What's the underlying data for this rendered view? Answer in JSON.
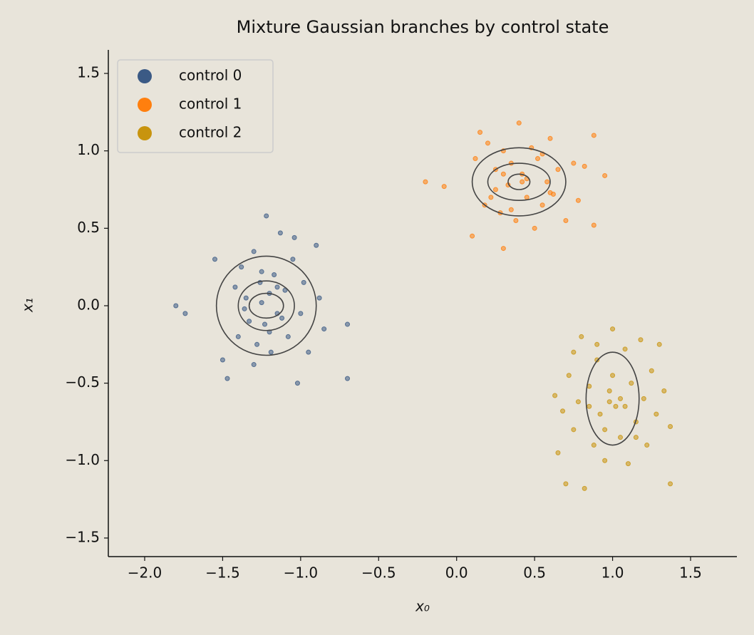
{
  "chart_data": {
    "type": "scatter",
    "title": "Mixture Gaussian branches by control state",
    "x_label": "x₀",
    "y_label": "x₁",
    "xlim": [
      -2.233,
      1.797
    ],
    "ylim": [
      -1.62,
      1.652
    ],
    "xticks": [
      {
        "value": -2.0,
        "label": "−2.0"
      },
      {
        "value": -1.5,
        "label": "−1.5"
      },
      {
        "value": -1.0,
        "label": "−1.0"
      },
      {
        "value": -0.5,
        "label": "−0.5"
      },
      {
        "value": 0,
        "label": "0.0"
      },
      0.5,
      {
        "value": 1.0,
        "label": "1.0"
      },
      1.5
    ],
    "yticks": [
      {
        "value": -1.5,
        "label": "−1.5"
      },
      {
        "value": -1.0,
        "label": "−1.0"
      },
      {
        "value": -0.5,
        "label": "−0.5"
      },
      {
        "value": 0,
        "label": "0.0"
      },
      0.5,
      {
        "value": 1.0,
        "label": "1.0"
      },
      1.5
    ],
    "legend": "upper left",
    "grid": false,
    "series": [
      {
        "name": "control 0",
        "color": "#3b5a85",
        "x": [
          -1.8,
          -1.74,
          -1.55,
          -1.5,
          -1.47,
          -1.42,
          -1.4,
          -1.38,
          -1.35,
          -1.33,
          -1.3,
          -1.28,
          -1.26,
          -1.25,
          -1.23,
          -1.22,
          -1.2,
          -1.19,
          -1.17,
          -1.15,
          -1.13,
          -1.1,
          -1.08,
          -1.05,
          -1.02,
          -0.98,
          -0.95,
          -0.9,
          -0.88,
          -0.85,
          -0.7,
          -0.7,
          -1.3,
          -1.12,
          -1.04,
          -1.2,
          -1.36,
          -1.25,
          -1.15,
          -1.0
        ],
        "values": [
          0.0,
          -0.05,
          0.3,
          -0.35,
          -0.47,
          0.12,
          -0.2,
          0.25,
          0.05,
          -0.1,
          0.35,
          -0.25,
          0.15,
          0.02,
          -0.12,
          0.58,
          0.08,
          -0.3,
          0.2,
          -0.05,
          0.47,
          0.1,
          -0.2,
          0.3,
          -0.5,
          0.15,
          -0.3,
          0.39,
          0.05,
          -0.15,
          -0.12,
          -0.47,
          -0.38,
          -0.08,
          0.44,
          -0.17,
          -0.02,
          0.22,
          0.12,
          -0.05
        ],
        "contours": [
          {
            "cx": -1.22,
            "cy": 0,
            "rx": 0.11,
            "ry": 0.08
          },
          {
            "cx": -1.22,
            "cy": 0,
            "rx": 0.18,
            "ry": 0.16
          },
          {
            "cx": -1.22,
            "cy": 0,
            "rx": 0.32,
            "ry": 0.32
          }
        ]
      },
      {
        "name": "control 1",
        "color": "#ff7f0e",
        "x": [
          -0.2,
          -0.08,
          0.1,
          0.12,
          0.15,
          0.18,
          0.2,
          0.22,
          0.25,
          0.28,
          0.3,
          0.3,
          0.33,
          0.35,
          0.38,
          0.4,
          0.42,
          0.45,
          0.48,
          0.5,
          0.52,
          0.55,
          0.58,
          0.6,
          0.62,
          0.65,
          0.7,
          0.75,
          0.78,
          0.82,
          0.88,
          0.88,
          0.95,
          0.25,
          0.45,
          0.55,
          0.35,
          0.42,
          0.3,
          0.6
        ],
        "values": [
          0.8,
          0.77,
          0.45,
          0.95,
          1.12,
          0.65,
          1.05,
          0.7,
          0.88,
          0.6,
          0.37,
          1.0,
          0.78,
          0.92,
          0.55,
          1.18,
          0.85,
          0.7,
          1.02,
          0.5,
          0.95,
          0.65,
          0.8,
          1.08,
          0.72,
          0.88,
          0.55,
          0.92,
          0.68,
          0.9,
          1.1,
          0.52,
          0.84,
          0.75,
          0.82,
          0.98,
          0.62,
          0.8,
          0.85,
          0.73
        ],
        "contours": [
          {
            "cx": 0.4,
            "cy": 0.8,
            "rx": 0.07,
            "ry": 0.05
          },
          {
            "cx": 0.4,
            "cy": 0.8,
            "rx": 0.2,
            "ry": 0.12
          },
          {
            "cx": 0.4,
            "cy": 0.8,
            "rx": 0.3,
            "ry": 0.22
          }
        ]
      },
      {
        "name": "control 2",
        "color": "#c8940e",
        "x": [
          0.63,
          0.65,
          0.68,
          0.7,
          0.72,
          0.75,
          0.78,
          0.8,
          0.82,
          0.85,
          0.88,
          0.9,
          0.92,
          0.95,
          0.98,
          1.0,
          1.02,
          1.05,
          1.08,
          1.1,
          1.12,
          1.15,
          1.18,
          1.2,
          1.22,
          1.25,
          1.28,
          1.3,
          1.33,
          1.37,
          1.37,
          0.75,
          0.85,
          0.95,
          1.0,
          1.05,
          0.9,
          1.15,
          1.08,
          0.98
        ],
        "values": [
          -0.58,
          -0.95,
          -0.68,
          -1.15,
          -0.45,
          -0.8,
          -0.62,
          -0.2,
          -1.18,
          -0.52,
          -0.9,
          -0.35,
          -0.7,
          -1.0,
          -0.55,
          -0.15,
          -0.65,
          -0.85,
          -0.28,
          -1.02,
          -0.5,
          -0.75,
          -0.22,
          -0.6,
          -0.9,
          -0.42,
          -0.7,
          -0.25,
          -0.55,
          -0.78,
          -1.15,
          -0.3,
          -0.65,
          -0.8,
          -0.45,
          -0.6,
          -0.25,
          -0.85,
          -0.65,
          -0.62
        ],
        "contours": [
          {
            "cx": 1.0,
            "cy": -0.6,
            "rx": 0.17,
            "ry": 0.3
          }
        ]
      }
    ]
  }
}
